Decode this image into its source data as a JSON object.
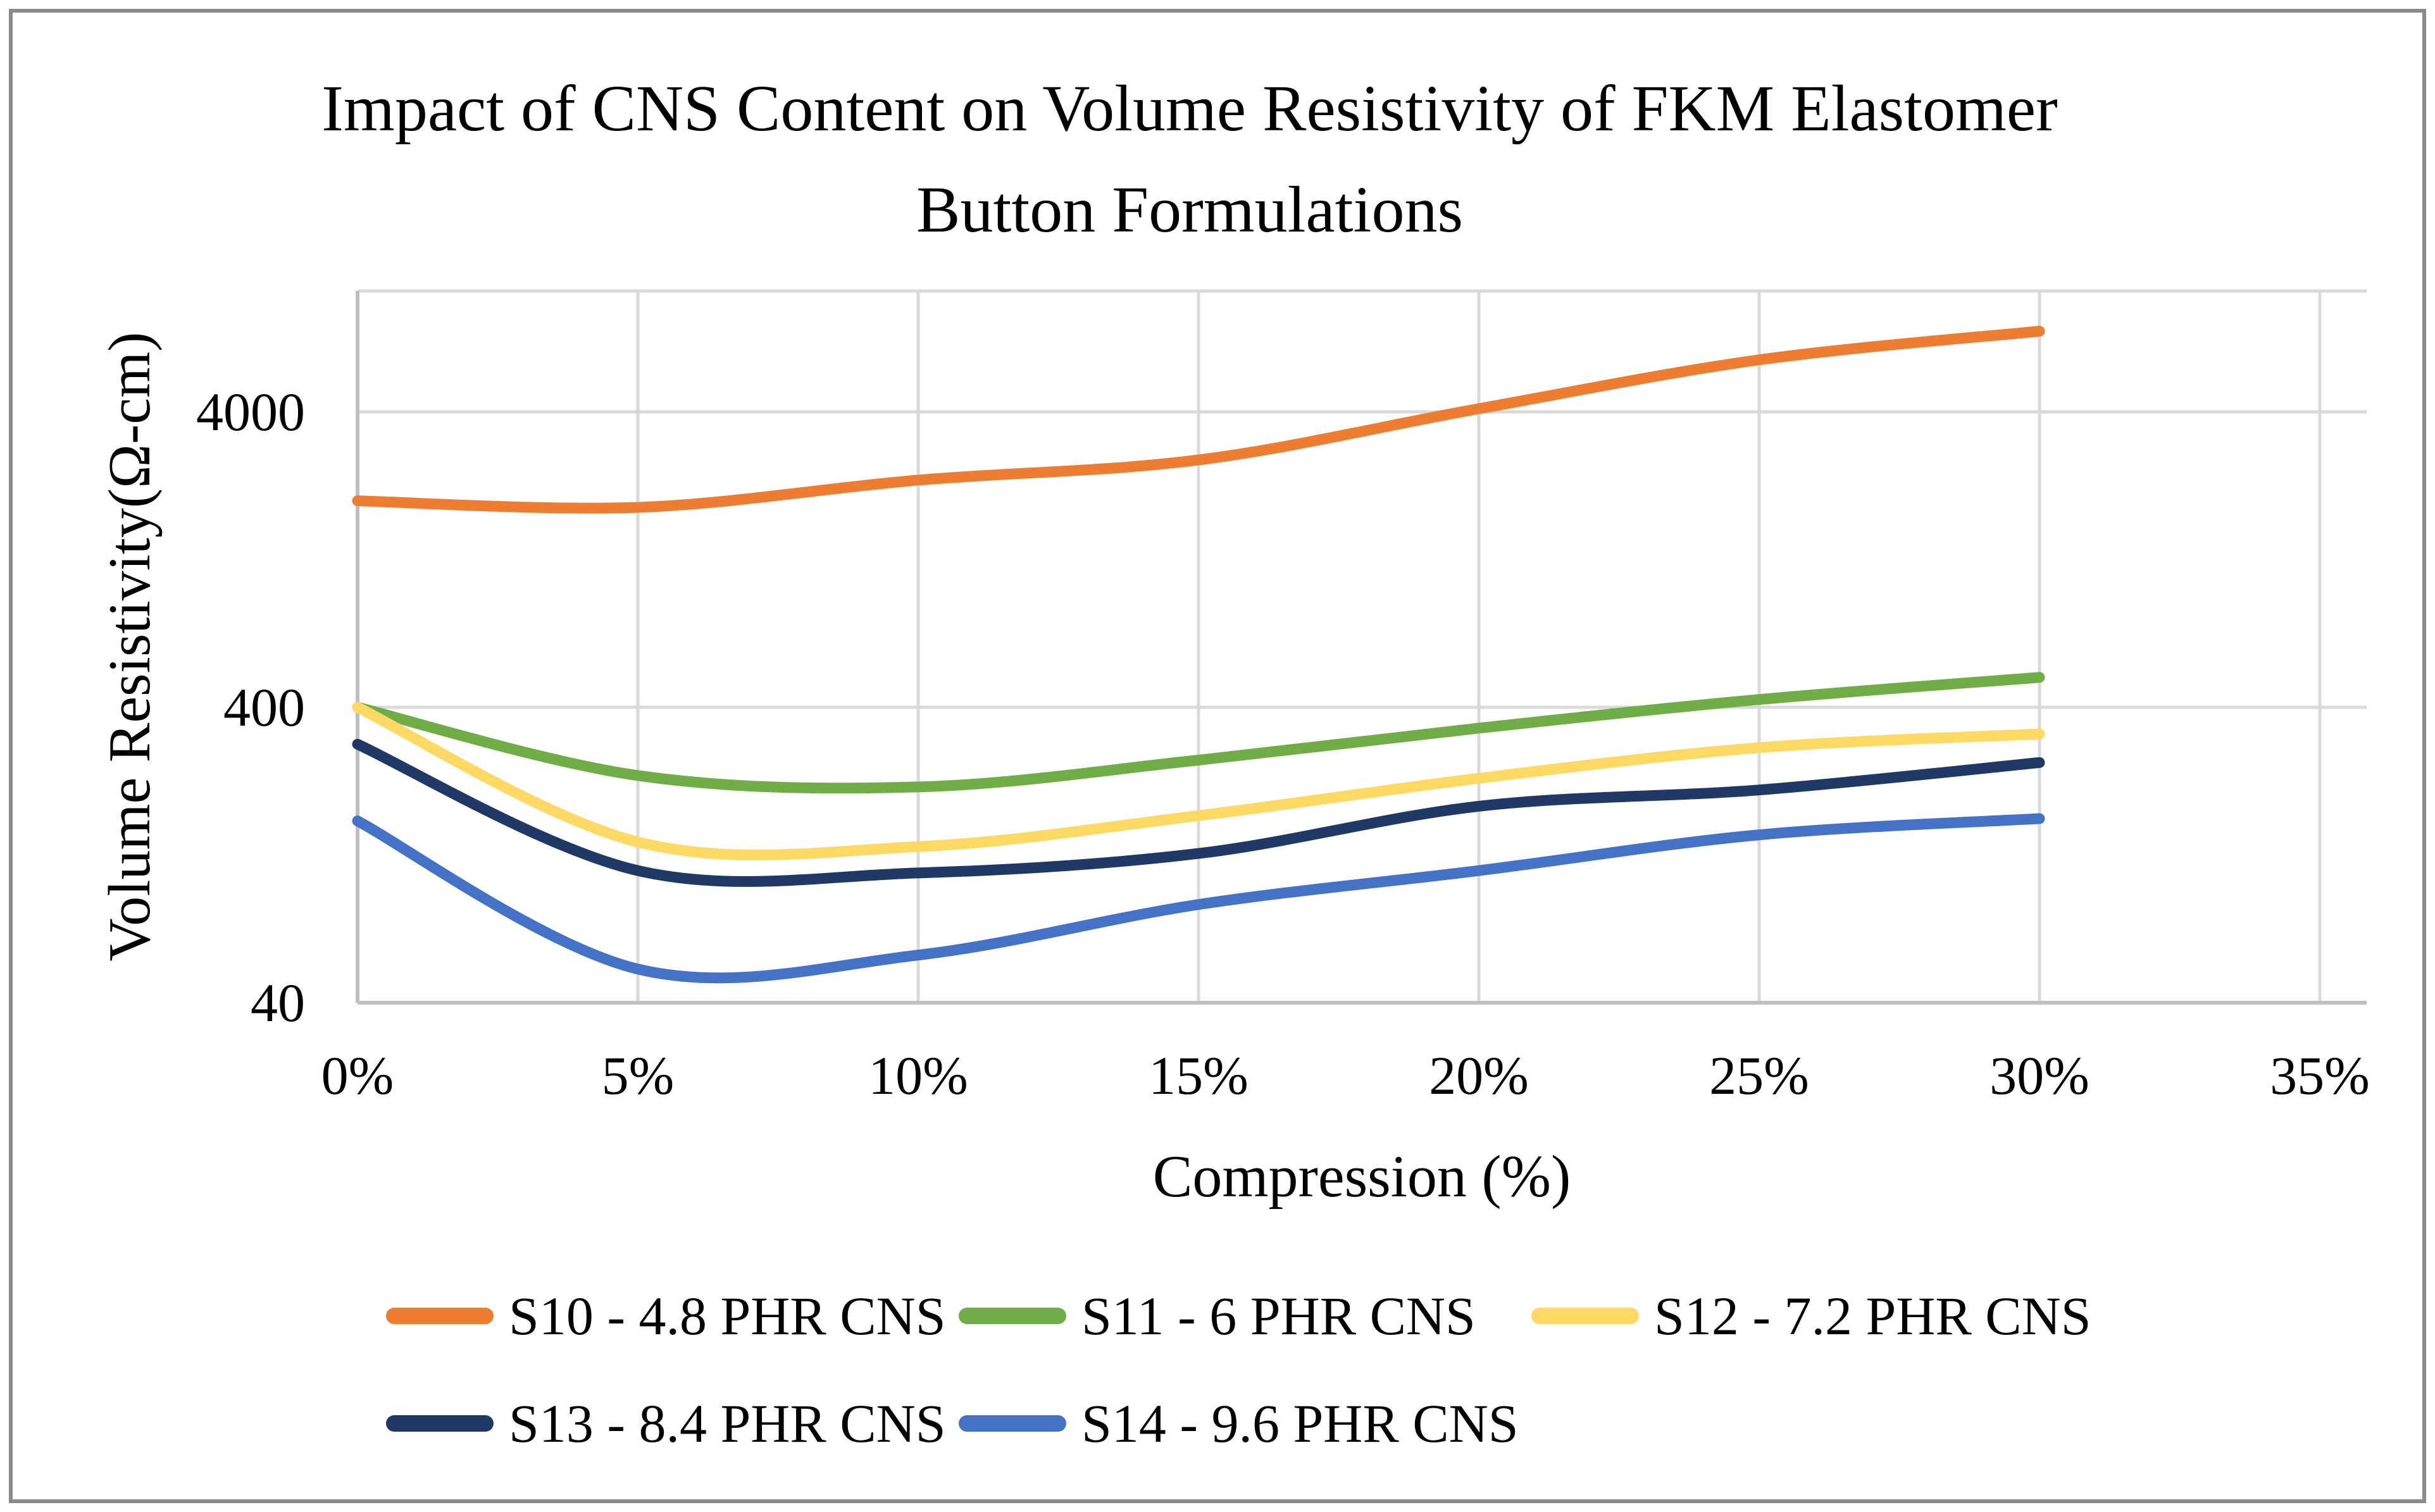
{
  "title": {
    "line1": "Impact of CNS Content on Volume Resistivity of FKM Elastomer",
    "line2": "Button Formulations"
  },
  "axes": {
    "y": {
      "title": "Volume Resistivity(Ω-cm)",
      "scale": "log",
      "min": 40,
      "max": 10000,
      "tick_labels": [
        "4000",
        "400",
        "40"
      ],
      "tick_values": [
        4000,
        400,
        40
      ]
    },
    "x": {
      "title": "Compression (%)",
      "tick_labels": [
        "0%",
        "5%",
        "10%",
        "15%",
        "20%",
        "25%",
        "30%",
        "35%"
      ],
      "tick_values": [
        0,
        5,
        10,
        15,
        20,
        25,
        30,
        35
      ]
    }
  },
  "legend": {
    "entries": [
      {
        "label": "S10 - 4.8 PHR CNS",
        "color": "#ED7D31"
      },
      {
        "label": "S11 - 6 PHR CNS",
        "color": "#70AD47"
      },
      {
        "label": "S12 - 7.2 PHR CNS",
        "color": "#FFD966"
      },
      {
        "label": "S13 - 8.4 PHR CNS",
        "color": "#1F3864"
      },
      {
        "label": "S14 - 9.6 PHR CNS",
        "color": "#4472C4"
      }
    ]
  },
  "colors": {
    "gridline": "#D9D9D9",
    "axis_line": "#BFBFBF",
    "figure_border": "#8A8A8A",
    "text": "#000000",
    "background": "#FFFFFF"
  },
  "chart_data": {
    "type": "line",
    "title": "Impact of CNS Content on Volume Resistivity of FKM Elastomer Button Formulations",
    "xlabel": "Compression (%)",
    "ylabel": "Volume Resistivity(Ω-cm)",
    "yscale": "log",
    "ylim": [
      40,
      10000
    ],
    "xlim_percent": [
      0,
      35
    ],
    "grid": true,
    "smooth_lines": true,
    "legend_position": "bottom",
    "x": [
      0,
      5,
      10,
      15,
      20,
      25,
      30
    ],
    "x_unit": "%",
    "series": [
      {
        "name": "S10 - 4.8 PHR CNS",
        "color": "#ED7D31",
        "values": [
          2000,
          1900,
          2350,
          2750,
          4100,
          6000,
          7500
        ]
      },
      {
        "name": "S11 - 6 PHR CNS",
        "color": "#70AD47",
        "values": [
          400,
          235,
          215,
          265,
          340,
          425,
          505
        ]
      },
      {
        "name": "S12 - 7.2 PHR CNS",
        "color": "#FFD966",
        "values": [
          400,
          140,
          135,
          172,
          230,
          292,
          325
        ]
      },
      {
        "name": "S13 - 8.4 PHR CNS",
        "color": "#1F3864",
        "values": [
          300,
          112,
          110,
          128,
          185,
          210,
          260
        ]
      },
      {
        "name": "S14 - 9.6 PHR CNS",
        "color": "#4472C4",
        "values": [
          165,
          52,
          58,
          86,
          112,
          148,
          168
        ]
      }
    ]
  }
}
